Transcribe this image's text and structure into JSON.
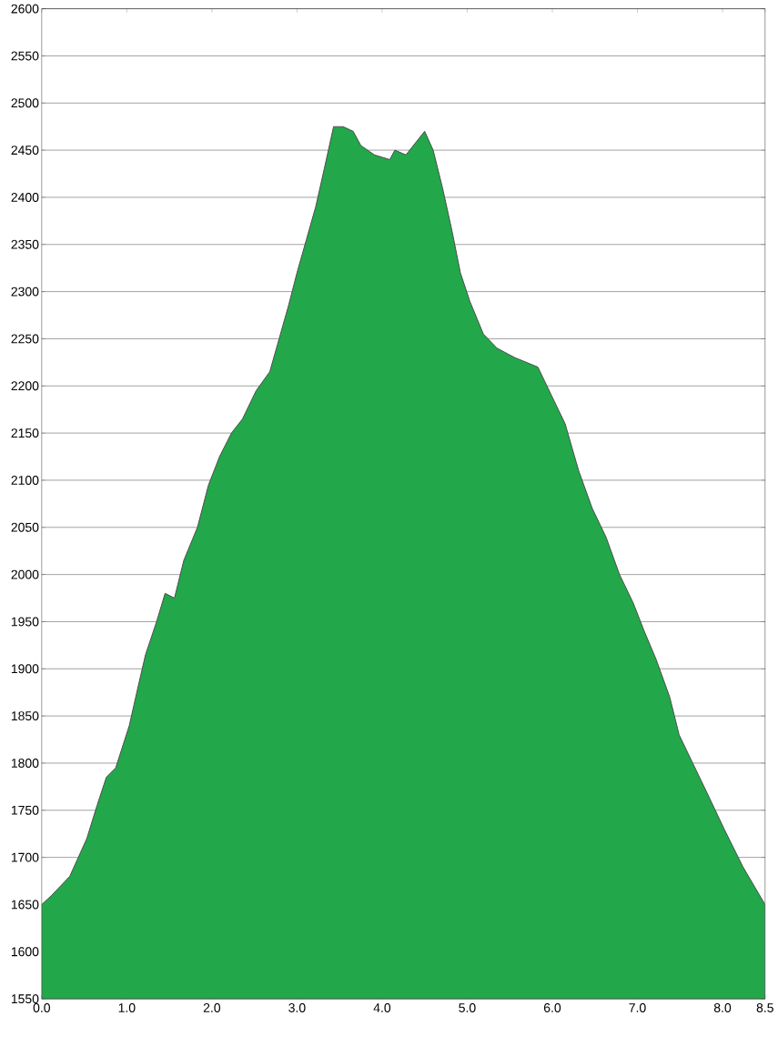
{
  "chart_data": {
    "type": "area",
    "color": "#22a84a",
    "grid": "y",
    "xlim": [
      0,
      8.5
    ],
    "ylim": [
      1550,
      2600
    ],
    "xticks": [
      {
        "value": 0,
        "label": "0.0"
      },
      {
        "value": 1,
        "label": "1.0"
      },
      {
        "value": 2,
        "label": "2.0"
      },
      {
        "value": 3,
        "label": "3.0"
      },
      {
        "value": 4,
        "label": "4.0"
      },
      {
        "value": 5,
        "label": "5.0"
      },
      {
        "value": 6,
        "label": "6.0"
      },
      {
        "value": 7,
        "label": "7.0"
      },
      {
        "value": 8,
        "label": "8.0"
      },
      8.5
    ],
    "yticks": [
      1550,
      1600,
      1650,
      1700,
      1750,
      1800,
      1850,
      1900,
      1950,
      2000,
      2050,
      2100,
      2150,
      2200,
      2250,
      2300,
      2350,
      2400,
      2450,
      2500,
      2550,
      2600
    ],
    "x": [
      0,
      0.12,
      0.33,
      0.53,
      0.65,
      0.76,
      0.87,
      1.03,
      1.13,
      1.22,
      1.35,
      1.45,
      1.56,
      1.67,
      1.83,
      1.96,
      2.09,
      2.23,
      2.36,
      2.52,
      2.68,
      2.79,
      2.9,
      3.0,
      3.11,
      3.22,
      3.32,
      3.43,
      3.54,
      3.66,
      3.75,
      3.91,
      4.09,
      4.15,
      4.28,
      4.5,
      4.6,
      4.71,
      4.82,
      4.92,
      5.03,
      5.19,
      5.35,
      5.56,
      5.83,
      5.99,
      6.15,
      6.31,
      6.47,
      6.63,
      6.79,
      6.95,
      7.08,
      7.22,
      7.38,
      7.49,
      7.65,
      7.81,
      8.02,
      8.24,
      8.5
    ],
    "values": [
      1650,
      1660,
      1680,
      1720,
      1755,
      1785,
      1795,
      1840,
      1880,
      1915,
      1950,
      1980,
      1975,
      2015,
      2050,
      2095,
      2125,
      2150,
      2165,
      2195,
      2215,
      2250,
      2285,
      2320,
      2355,
      2390,
      2430,
      2475,
      2475,
      2470,
      2455,
      2445,
      2440,
      2450,
      2445,
      2470,
      2450,
      2410,
      2365,
      2320,
      2290,
      2255,
      2240,
      2230,
      2220,
      2190,
      2160,
      2110,
      2070,
      2040,
      2000,
      1970,
      1940,
      1910,
      1870,
      1830,
      1800,
      1770,
      1730,
      1690,
      1650
    ]
  }
}
